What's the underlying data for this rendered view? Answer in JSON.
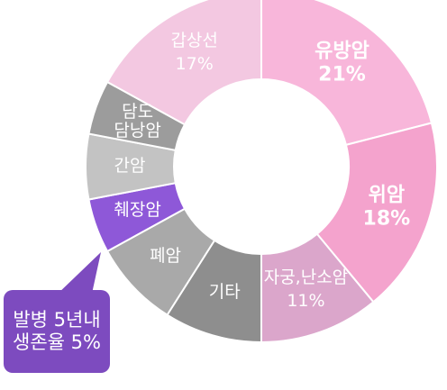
{
  "chart_data": {
    "type": "donut",
    "categories": [
      "유방암",
      "위암",
      "자궁,난소암",
      "기타",
      "폐암",
      "췌장암",
      "간암",
      "담도\n담낭암",
      "갑상선"
    ],
    "values": [
      21,
      18,
      11,
      9,
      8,
      5,
      6,
      5,
      17
    ],
    "value_labels": [
      "21%",
      "18%",
      "11%",
      null,
      null,
      null,
      null,
      null,
      "17%"
    ],
    "colors": [
      "#f8b6da",
      "#f4a3cd",
      "#dba6cb",
      "#8e8e8e",
      "#a9a9a9",
      "#8e58d8",
      "#c3c3c3",
      "#9c9c9c",
      "#f3c8e1"
    ],
    "annotation": "발병 5년내\n생존율 5%"
  }
}
